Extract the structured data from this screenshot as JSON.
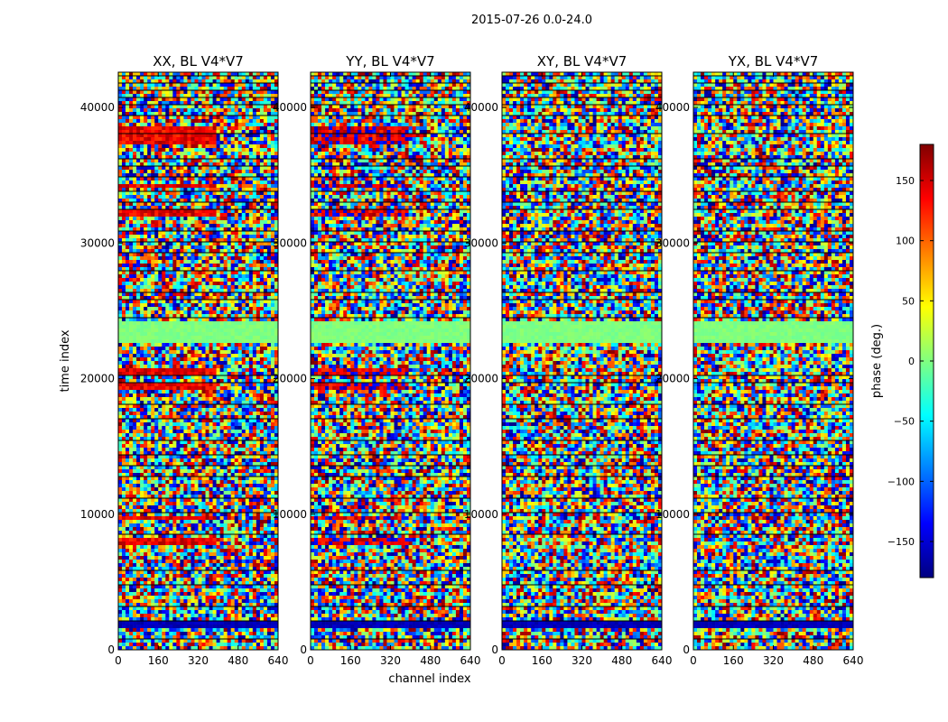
{
  "figure": {
    "suptitle": "2015-07-26 0.0-24.0",
    "xlabel": "channel index",
    "ylabel": "time index"
  },
  "colorbar": {
    "label": "phase (deg.)",
    "range": [
      -180,
      180
    ],
    "ticks": [
      150,
      100,
      50,
      0,
      -50,
      -100,
      -150
    ],
    "tick_labels": [
      "150",
      "100",
      "50",
      "0",
      "−50",
      "−100",
      "−150"
    ],
    "colors": [
      "#000080",
      "#0000ff",
      "#0080ff",
      "#00ffff",
      "#80ff80",
      "#ffff00",
      "#ff8000",
      "#ff0000",
      "#800000"
    ]
  },
  "chart_data": {
    "type": "heatmap",
    "title": "2015-07-26 0.0-24.0",
    "xlabel": "channel index",
    "ylabel": "time index",
    "x_ticks": [
      0,
      160,
      320,
      480,
      640
    ],
    "x_tick_labels": [
      "0",
      "160",
      "320",
      "480",
      "640"
    ],
    "y_ticks": [
      0,
      10000,
      20000,
      30000,
      40000
    ],
    "y_tick_labels": [
      "0",
      "10000",
      "20000",
      "30000",
      "40000"
    ],
    "xlim": [
      0,
      640
    ],
    "ylim": [
      0,
      42600
    ],
    "value_label": "phase (deg.)",
    "value_range": [
      -180,
      180
    ],
    "panels": [
      {
        "title": "XX, BL V4*V7",
        "polarization": "XX",
        "baseline": "V4*V7"
      },
      {
        "title": "YY, BL V4*V7",
        "polarization": "YY",
        "baseline": "V4*V7"
      },
      {
        "title": "XY, BL V4*V7",
        "polarization": "XY",
        "baseline": "V4*V7"
      },
      {
        "title": "YX, BL V4*V7",
        "polarization": "YX",
        "baseline": "V4*V7"
      }
    ],
    "features": {
      "constant_phase_band_time": [
        22700,
        24200
      ],
      "low_phase_band_time": [
        1700,
        2200
      ],
      "red_bands_time_XX_YY": [
        [
          7800,
          8200
        ],
        [
          9600,
          9900
        ],
        [
          19200,
          19600
        ],
        [
          20200,
          20700
        ],
        [
          32000,
          32500
        ],
        [
          34000,
          34400
        ],
        [
          37200,
          38600
        ]
      ]
    }
  }
}
